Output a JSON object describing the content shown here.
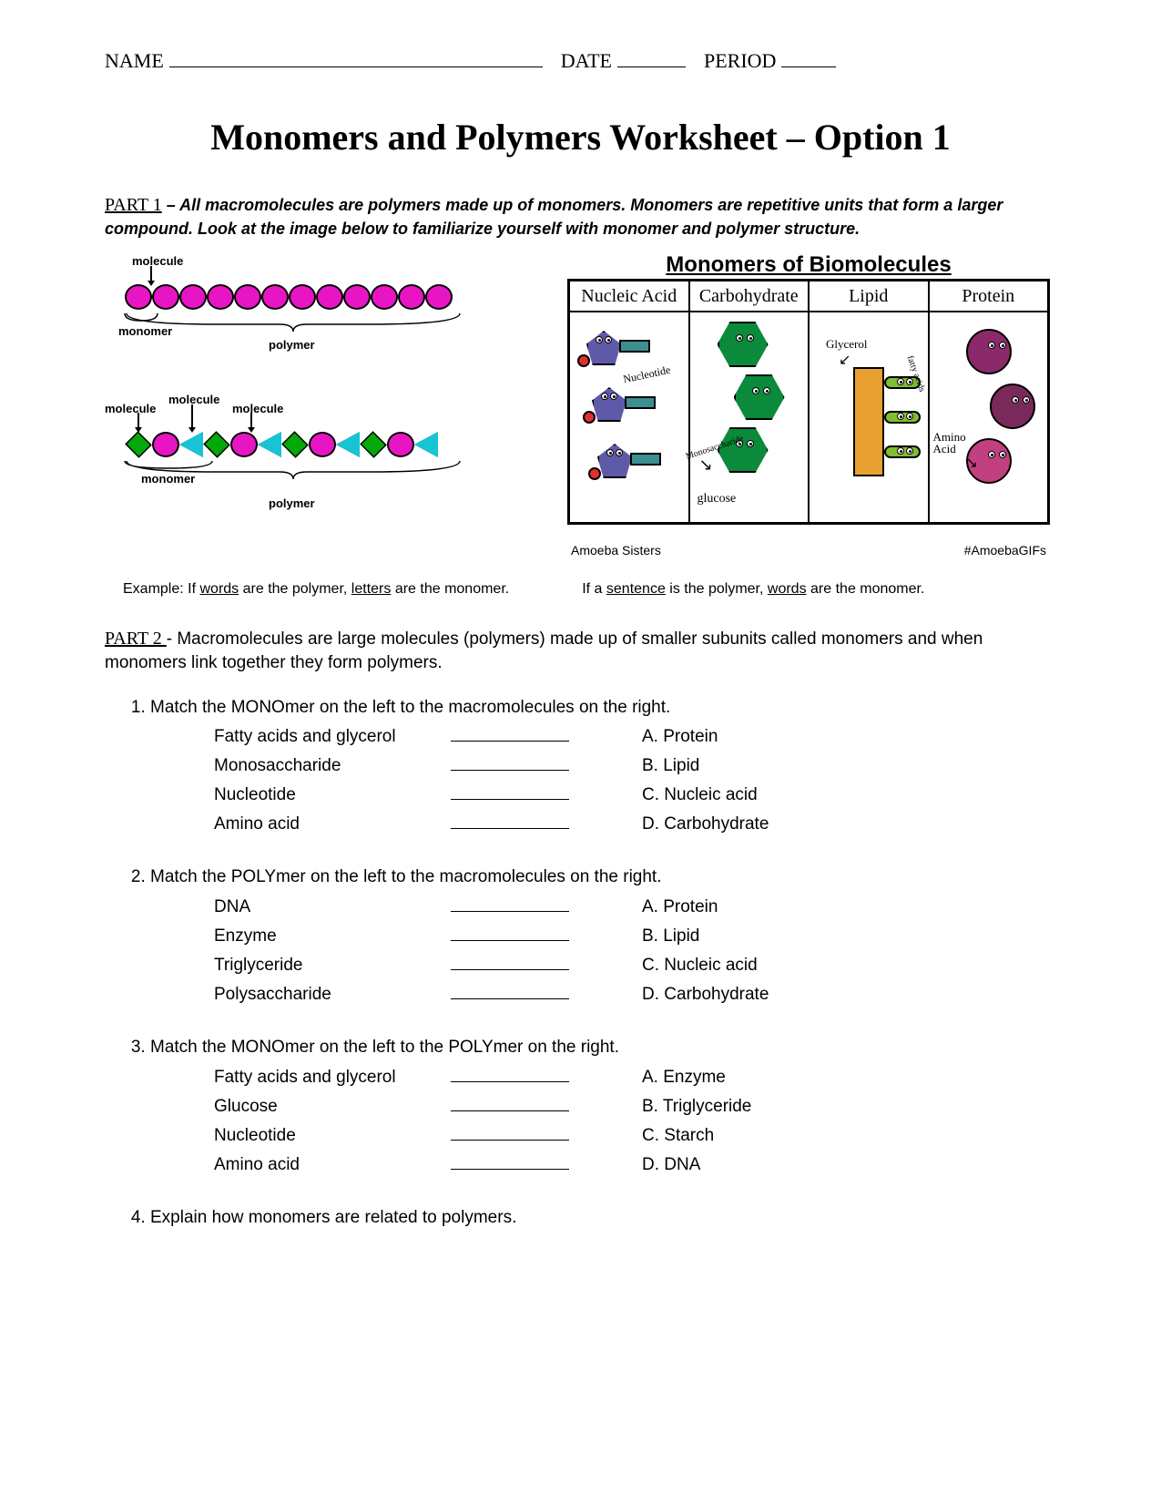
{
  "header": {
    "name_label": "NAME",
    "date_label": "DATE",
    "period_label": "PERIOD",
    "name_blank_width": 410,
    "date_blank_width": 75,
    "period_blank_width": 60
  },
  "title": "Monomers and Polymers Worksheet – Option 1",
  "part1": {
    "label": "PART 1",
    "intro": " – All macromolecules are polymers made up of monomers.  Monomers are repetitive units that form a larger compound.  Look at the image below to familiarize yourself with monomer and polymer structure."
  },
  "left_diagram": {
    "labels": {
      "molecule1": "molecule",
      "monomer1": "monomer",
      "polymer1": "polymer",
      "molecule2": "molecule",
      "molecule3": "molecule",
      "molecule4": "molecule",
      "monomer2": "monomer",
      "polymer2": "polymer"
    },
    "colors": {
      "oval": "#e815c4",
      "diamond": "#05a80b",
      "triangle": "#17c4d4",
      "outline": "#000000"
    },
    "chain1_count": 12,
    "chain2_pattern": [
      "diamond",
      "oval",
      "tri",
      "diamond",
      "oval",
      "tri",
      "diamond",
      "oval",
      "tri",
      "diamond",
      "oval",
      "tri"
    ]
  },
  "right_diagram": {
    "title": "Monomers of Biomolecules",
    "columns": [
      {
        "head": "Nucleic Acid",
        "head_font": "serif",
        "label": "Nucleotide",
        "bottom_label": "",
        "body_color": "#5f5aa8",
        "accent": "#e03030"
      },
      {
        "head": "Carbohydrate",
        "head_font": "serif",
        "label": "Monosaccharide",
        "bottom_label": "glucose",
        "body_color": "#0a8a3a",
        "accent": "#0a6a2a"
      },
      {
        "head": "Lipid",
        "head_font": "comic",
        "label": "Glycerol",
        "bottom_label": "fatty acids",
        "body_color": "#e8a030",
        "accent": "#7fbf2f"
      },
      {
        "head": "Protein",
        "head_font": "comic",
        "label": "Amino Acid",
        "bottom_label": "",
        "body_color": "#8a2a6a",
        "accent": "#c04080"
      }
    ],
    "footer_left": "Amoeba Sisters",
    "footer_right": "#AmoebaGIFs"
  },
  "example": {
    "part_a_pre": "Example:  If ",
    "part_a_u1": "words",
    "part_a_mid": " are the polymer, ",
    "part_a_u2": "letters",
    "part_a_post": " are the monomer.",
    "part_b_pre": "If a ",
    "part_b_u1": "sentence",
    "part_b_mid": " is the polymer, ",
    "part_b_u2": "words",
    "part_b_post": " are the monomer."
  },
  "part2": {
    "label": "PART 2 ",
    "intro": " - Macromolecules are large molecules (polymers) made up of smaller subunits called monomers and when monomers link together they form polymers."
  },
  "questions": [
    {
      "prompt": "Match the MONOmer on the left to the macromolecules on the right.",
      "rows": [
        {
          "left": "Fatty acids and glycerol",
          "right": "A. Protein"
        },
        {
          "left": "Monosaccharide",
          "right": "B. Lipid"
        },
        {
          "left": "Nucleotide",
          "right": "C. Nucleic acid"
        },
        {
          "left": "Amino acid",
          "right": "D. Carbohydrate"
        }
      ]
    },
    {
      "prompt": "Match the POLYmer on the left to the macromolecules on the right.",
      "rows": [
        {
          "left": "DNA",
          "right": "A. Protein"
        },
        {
          "left": "Enzyme",
          "right": "B. Lipid"
        },
        {
          "left": "Triglyceride",
          "right": "C. Nucleic acid"
        },
        {
          "left": "Polysaccharide",
          "right": "D. Carbohydrate"
        }
      ]
    },
    {
      "prompt": "Match the MONOmer on the left to the POLYmer on the right.",
      "rows": [
        {
          "left": "Fatty acids and glycerol",
          "right": "A. Enzyme"
        },
        {
          "left": "Glucose",
          "right": "B. Triglyceride"
        },
        {
          "left": "Nucleotide",
          "right": "C. Starch"
        },
        {
          "left": "Amino acid",
          "right": "D. DNA"
        }
      ]
    },
    {
      "prompt": "Explain how monomers are related to polymers.",
      "rows": []
    }
  ]
}
